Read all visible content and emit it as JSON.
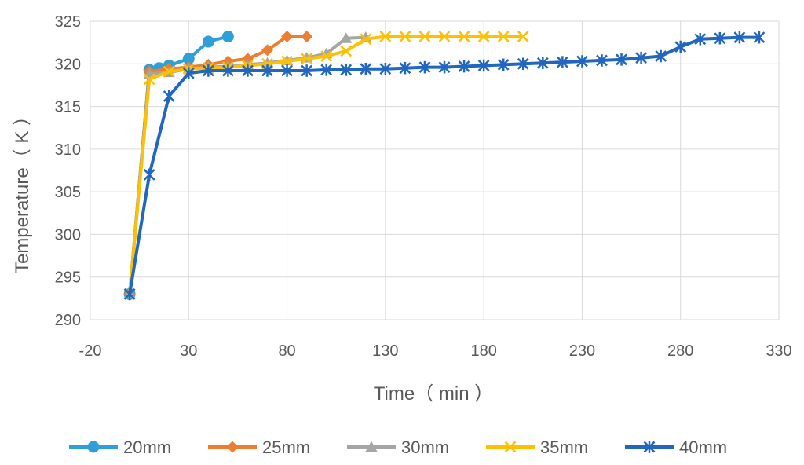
{
  "chart_data": {
    "type": "line",
    "title": "",
    "xlabel": "Time（ min ）",
    "ylabel": "Temperature（ K ）",
    "xlim": [
      -20,
      330
    ],
    "ylim": [
      290,
      325
    ],
    "x_ticks": [
      -20,
      30,
      80,
      130,
      180,
      230,
      280,
      330
    ],
    "y_ticks": [
      290,
      295,
      300,
      305,
      310,
      315,
      320,
      325
    ],
    "grid": true,
    "legend_position": "bottom",
    "series": [
      {
        "name": "20mm",
        "color": "#2e9fd8",
        "marker": "circle",
        "points": [
          [
            0,
            293
          ],
          [
            10,
            319.3
          ],
          [
            15,
            319.5
          ],
          [
            20,
            319.8
          ],
          [
            30,
            320.6
          ],
          [
            40,
            322.6
          ],
          [
            50,
            323.2
          ]
        ]
      },
      {
        "name": "25mm",
        "color": "#ed7d31",
        "marker": "diamond",
        "points": [
          [
            0,
            293
          ],
          [
            10,
            319.1
          ],
          [
            20,
            319.4
          ],
          [
            30,
            319.6
          ],
          [
            40,
            319.9
          ],
          [
            50,
            320.3
          ],
          [
            60,
            320.6
          ],
          [
            70,
            321.6
          ],
          [
            80,
            323.2
          ],
          [
            90,
            323.2
          ]
        ]
      },
      {
        "name": "30mm",
        "color": "#a5a5a5",
        "marker": "triangle",
        "points": [
          [
            0,
            293
          ],
          [
            10,
            318.8
          ],
          [
            20,
            319.0
          ],
          [
            30,
            319.4
          ],
          [
            40,
            319.6
          ],
          [
            50,
            319.7
          ],
          [
            60,
            319.9
          ],
          [
            70,
            320.1
          ],
          [
            80,
            320.4
          ],
          [
            90,
            320.7
          ],
          [
            100,
            321.2
          ],
          [
            110,
            323.0
          ],
          [
            120,
            323.1
          ]
        ]
      },
      {
        "name": "35mm",
        "color": "#ffc000",
        "marker": "x",
        "points": [
          [
            0,
            293
          ],
          [
            10,
            318.2
          ],
          [
            20,
            319.1
          ],
          [
            30,
            319.4
          ],
          [
            40,
            319.5
          ],
          [
            50,
            319.6
          ],
          [
            60,
            319.8
          ],
          [
            70,
            320.0
          ],
          [
            80,
            320.3
          ],
          [
            90,
            320.6
          ],
          [
            100,
            320.9
          ],
          [
            110,
            321.5
          ],
          [
            120,
            322.9
          ],
          [
            130,
            323.2
          ],
          [
            140,
            323.2
          ],
          [
            150,
            323.2
          ],
          [
            160,
            323.2
          ],
          [
            170,
            323.2
          ],
          [
            180,
            323.2
          ],
          [
            190,
            323.2
          ],
          [
            200,
            323.2
          ]
        ]
      },
      {
        "name": "40mm",
        "color": "#2167c0",
        "marker": "asterisk",
        "points": [
          [
            0,
            293
          ],
          [
            10,
            307
          ],
          [
            20,
            316.2
          ],
          [
            30,
            318.9
          ],
          [
            40,
            319.2
          ],
          [
            50,
            319.2
          ],
          [
            60,
            319.2
          ],
          [
            70,
            319.2
          ],
          [
            80,
            319.2
          ],
          [
            90,
            319.2
          ],
          [
            100,
            319.3
          ],
          [
            110,
            319.3
          ],
          [
            120,
            319.4
          ],
          [
            130,
            319.4
          ],
          [
            140,
            319.5
          ],
          [
            150,
            319.6
          ],
          [
            160,
            319.6
          ],
          [
            170,
            319.7
          ],
          [
            180,
            319.8
          ],
          [
            190,
            319.9
          ],
          [
            200,
            320.0
          ],
          [
            210,
            320.1
          ],
          [
            220,
            320.2
          ],
          [
            230,
            320.3
          ],
          [
            240,
            320.4
          ],
          [
            250,
            320.5
          ],
          [
            260,
            320.7
          ],
          [
            270,
            320.9
          ],
          [
            280,
            322.0
          ],
          [
            290,
            322.9
          ],
          [
            300,
            323.0
          ],
          [
            310,
            323.1
          ],
          [
            320,
            323.1
          ]
        ]
      }
    ]
  }
}
